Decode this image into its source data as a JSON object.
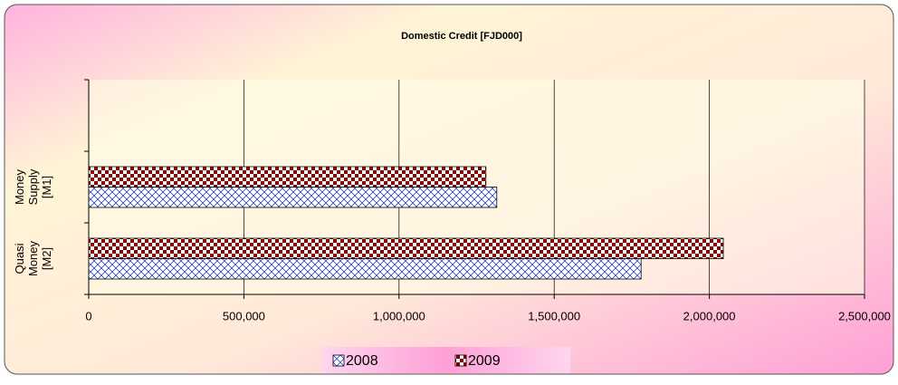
{
  "chart_data": {
    "type": "bar",
    "orientation": "horizontal",
    "title": "Domestic Credit [FJD000]",
    "categories": [
      null,
      "Money Supply [M1]",
      "Quasi Money [M2]"
    ],
    "series": [
      {
        "name": "2008",
        "color": "#2b47c9",
        "values": [
          null,
          1315000,
          1780000
        ]
      },
      {
        "name": "2009",
        "color": "#800000",
        "values": [
          null,
          1280000,
          2045000
        ]
      }
    ],
    "xlim": [
      0,
      2500000
    ],
    "xticks": [
      0,
      {
        "value": 500000,
        "label": "500,000"
      },
      {
        "value": 1000000,
        "label": "1,000,000"
      },
      {
        "value": 1500000,
        "label": "1,500,000"
      },
      {
        "value": 2000000,
        "label": "2,000,000"
      },
      {
        "value": 2500000,
        "label": "2,500,000"
      }
    ],
    "grid": true,
    "legend": "bottom"
  }
}
